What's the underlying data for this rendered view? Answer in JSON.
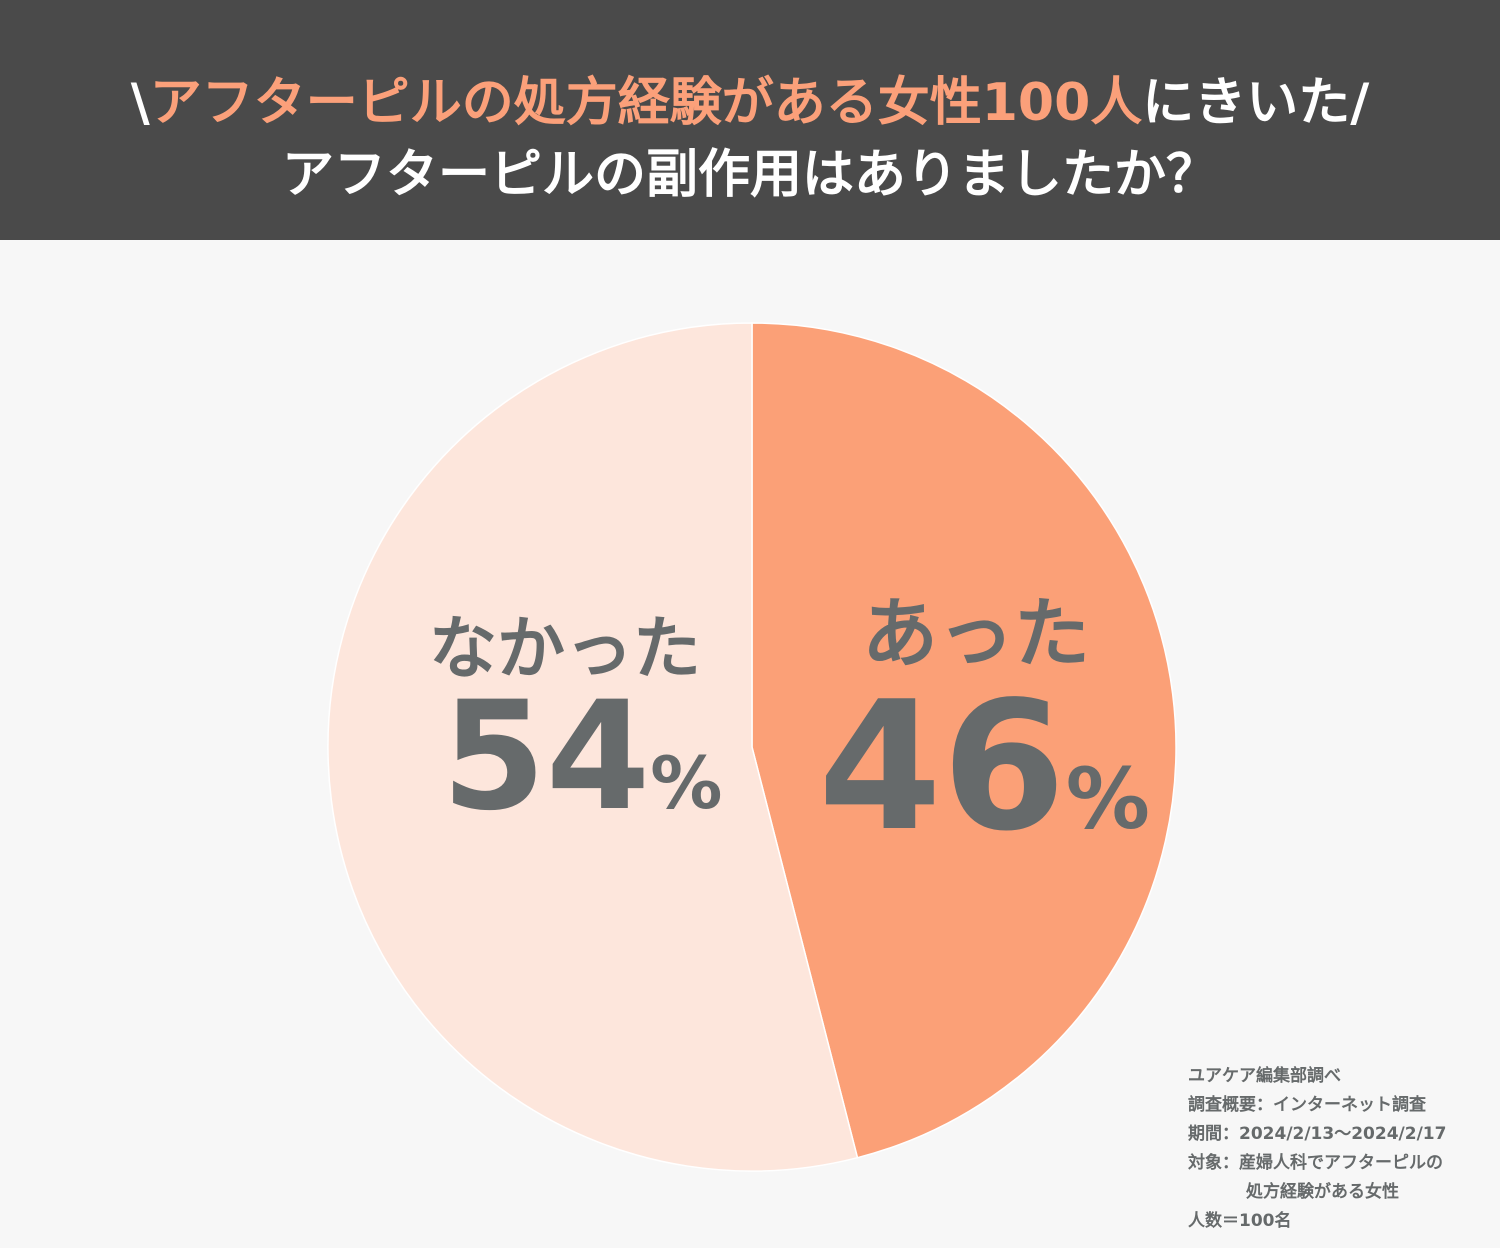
{
  "header": {
    "title_prefix": "\\",
    "title_highlight": "アフターピルの処方経験がある女性100人",
    "title_suffix": "にきいた/",
    "subtitle": "アフターピルの副作用はありましたか？"
  },
  "colors": {
    "header_bg": "#4a4a4a",
    "accent": "#fba07a",
    "slice_yes": "#fba077",
    "slice_no": "#fde6dc",
    "label_text": "#666a6b"
  },
  "chart_data": {
    "type": "pie",
    "title": "アフターピルの副作用はありましたか？",
    "slices": [
      {
        "label": "あった",
        "value": 46,
        "unit": "%",
        "color": "#fba077"
      },
      {
        "label": "なかった",
        "value": 54,
        "unit": "%",
        "color": "#fde6dc"
      }
    ],
    "start": "12 o'clock",
    "direction": "clockwise"
  },
  "notes": {
    "line1": "ユアケア編集部調べ",
    "line2": "調査概要：インターネット調査",
    "line3": "期間：2024/2/13〜2024/2/17",
    "line4": "対象：産婦人科でアフターピルの",
    "line5": "処方経験がある女性",
    "line6": "人数＝100名"
  }
}
